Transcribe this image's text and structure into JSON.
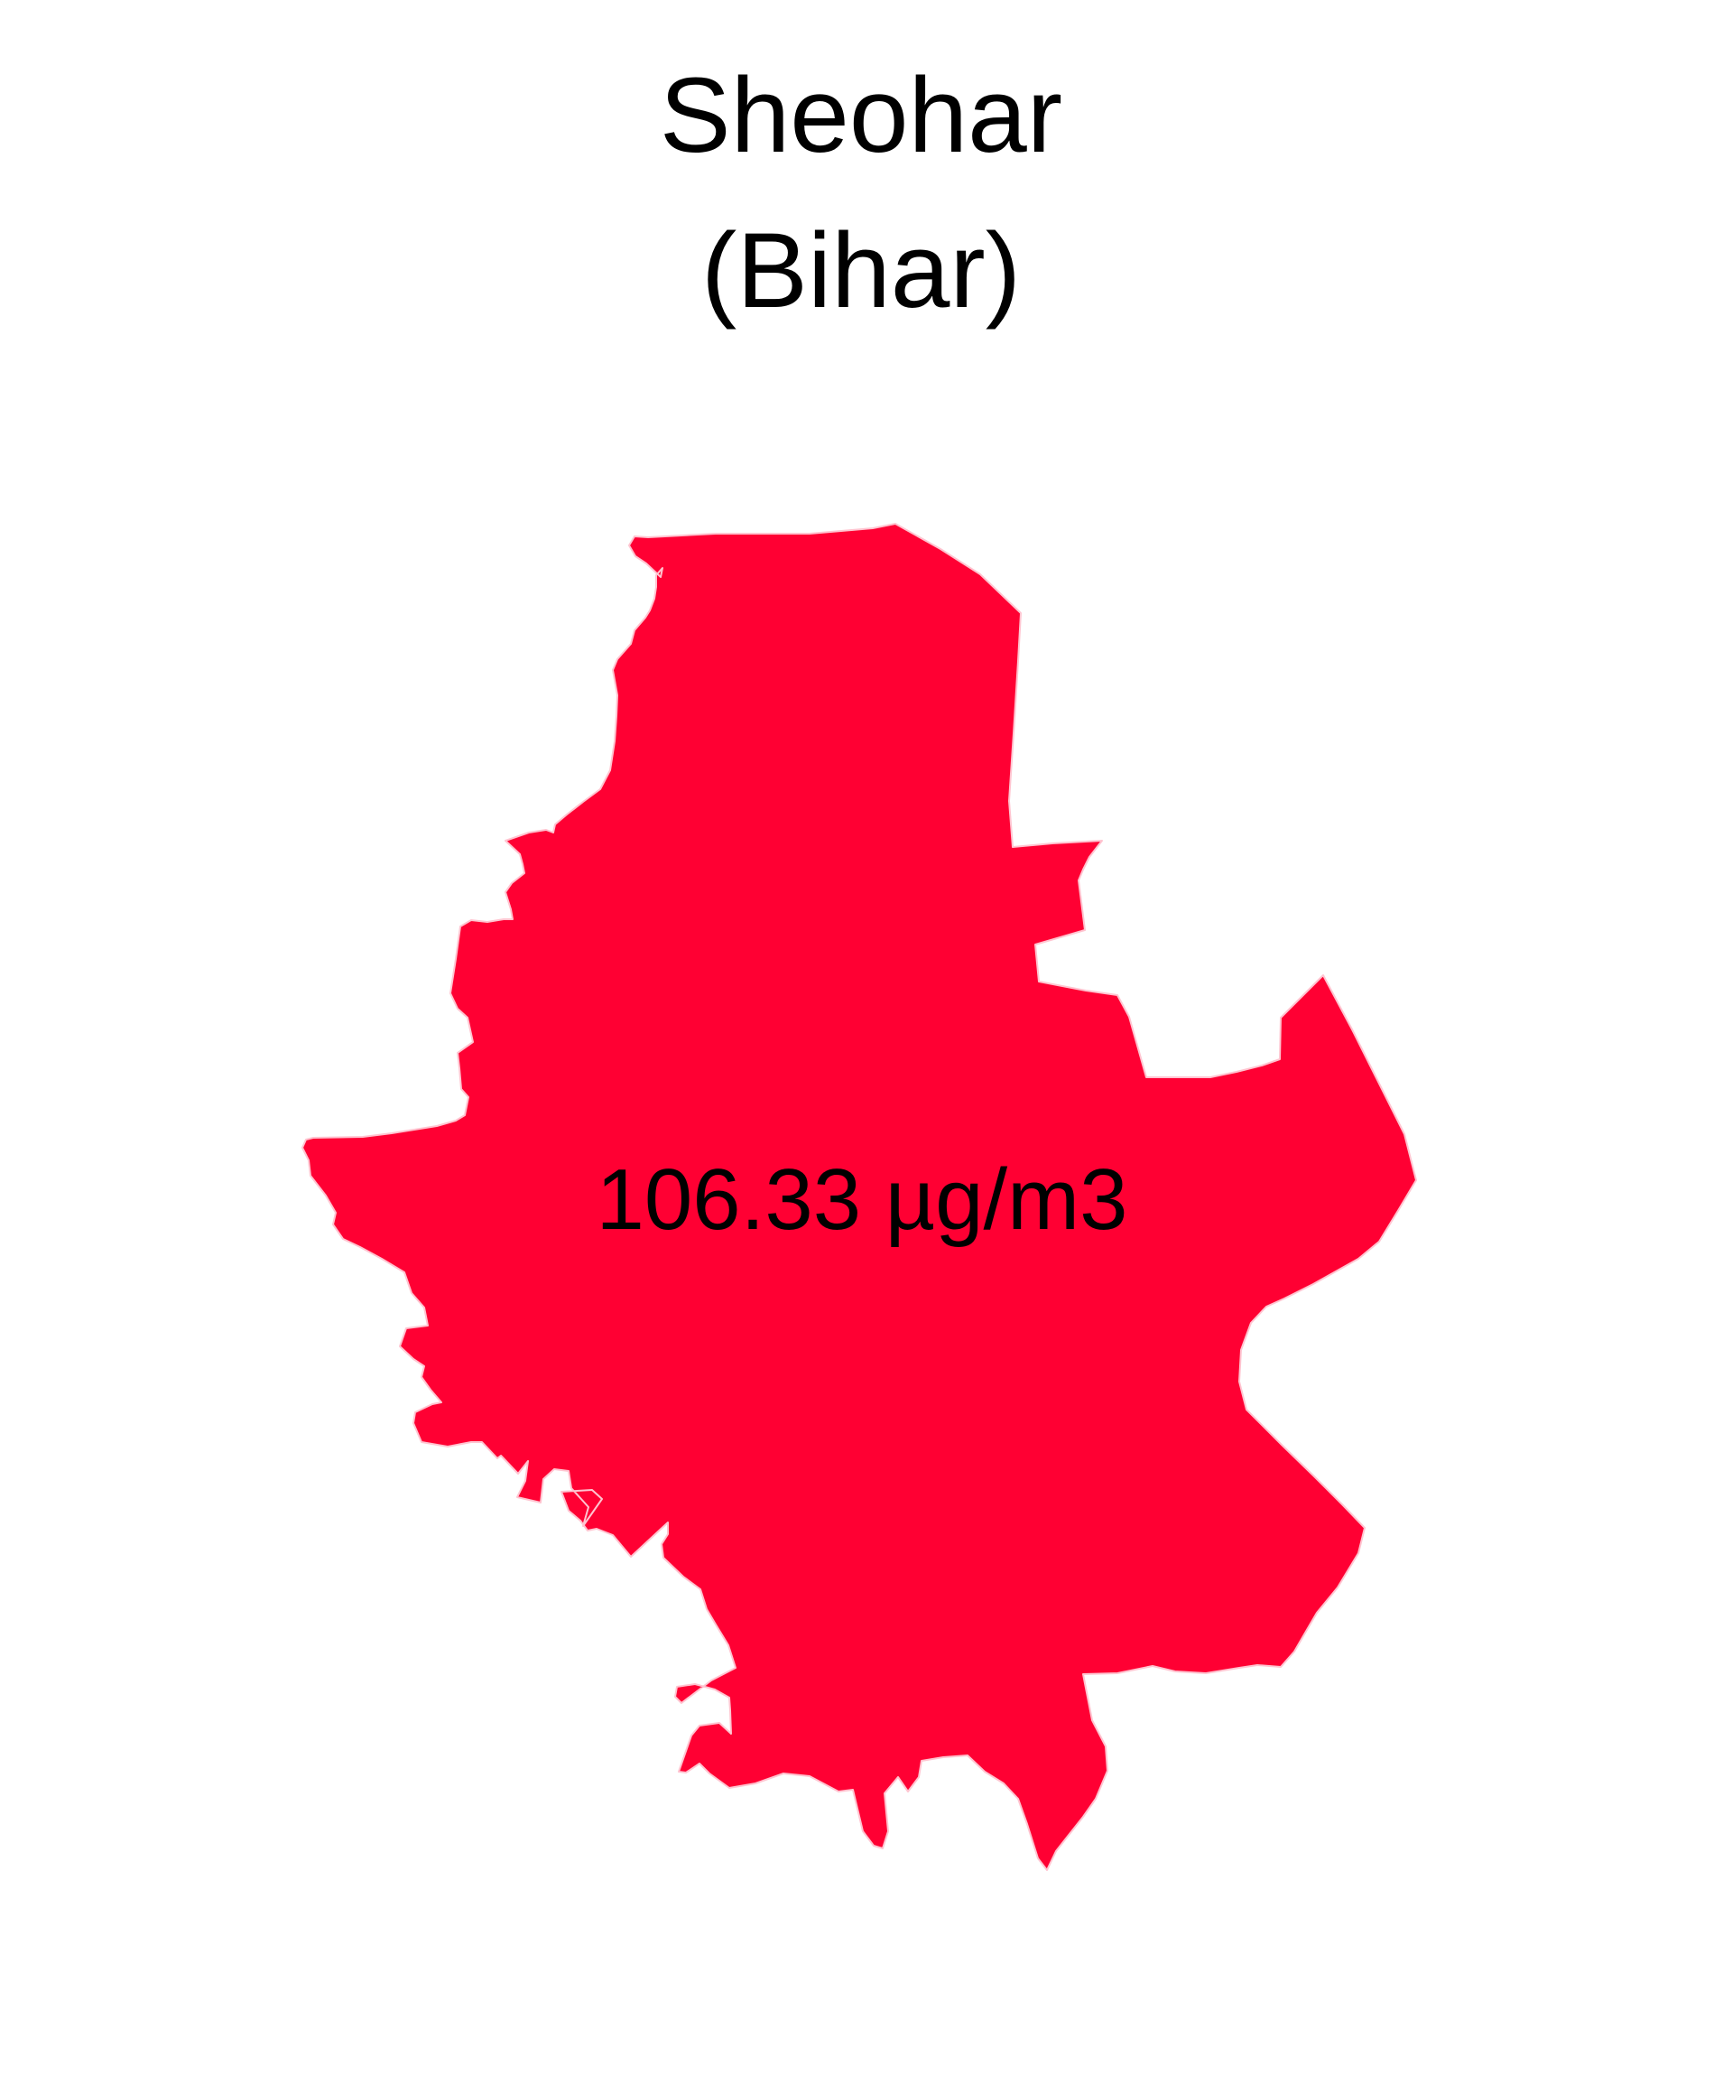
{
  "map": {
    "title": "Sheohar",
    "subtitle": "(Bihar)",
    "district": "Sheohar",
    "state": "Bihar",
    "value_label": "106.33 µg/m3",
    "value": 106.33,
    "unit": "µg/m3",
    "fill_color": "#ff0033",
    "background_color": "#ffffff",
    "text_color": "#000000"
  }
}
